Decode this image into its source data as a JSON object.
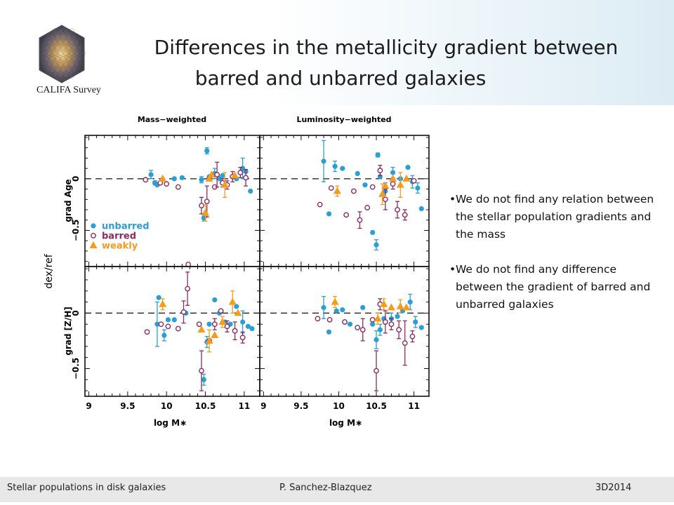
{
  "slide": {
    "title_line1": "Differences in the metallicity gradient between",
    "title_line2": "barred and unbarred galaxies",
    "logo_text": "CALIFA Survey",
    "bullets": [
      "We do not find any relation between the stellar population gradients and the mass",
      "We do not find any difference between the gradient of barred and unbarred galaxies"
    ],
    "footer": {
      "left": "Stellar populations in disk galaxies",
      "center": "P. Sanchez-Blazquez",
      "right": "3D2014"
    }
  },
  "chart_data": {
    "type": "scatter",
    "shared_ylabel": "dex/ref",
    "column_titles": [
      "Mass−weighted",
      "Luminosity−weighted"
    ],
    "row_ylabels": [
      "grad Age",
      "grad [Z/H]"
    ],
    "xlabel": "log M∗",
    "xlim": [
      8.95,
      11.2
    ],
    "xticks": [
      "9",
      "9.5",
      "10",
      "10.5",
      "11"
    ],
    "ylim_top": [
      -0.85,
      0.42
    ],
    "ylim_bottom": [
      -0.75,
      0.42
    ],
    "yticks_labeled": [
      "0",
      "−0.5"
    ],
    "legend": {
      "position": "bottom-left of top-left panel",
      "entries": [
        "unbarred",
        "barred",
        "weakly"
      ]
    },
    "colors": {
      "unbarred": "#2a9fd6",
      "barred": "#8b2c5e",
      "weakly": "#f39c1e"
    },
    "panels": [
      {
        "name": "mass-weighted-age",
        "unbarred": [
          [
            9.8,
            0.04,
            0.04
          ],
          [
            9.85,
            -0.04,
            0.02
          ],
          [
            9.88,
            -0.06,
            0
          ],
          [
            10.1,
            0,
            0
          ],
          [
            10.2,
            0.01,
            0
          ],
          [
            10.45,
            -0.01,
            0.03
          ],
          [
            10.48,
            -0.38,
            0.03
          ],
          [
            10.52,
            0.27,
            0.03
          ],
          [
            10.55,
            0.02,
            0
          ],
          [
            10.62,
            0.05,
            0.05
          ],
          [
            10.68,
            0,
            0
          ],
          [
            10.72,
            0.03,
            0
          ],
          [
            10.78,
            -0.06,
            0
          ],
          [
            10.9,
            0,
            0
          ],
          [
            10.98,
            0.1,
            0.1
          ],
          [
            11.02,
            0.07,
            0
          ],
          [
            11.08,
            -0.12,
            0
          ]
        ],
        "barred": [
          [
            9.73,
            -0.01,
            0
          ],
          [
            9.92,
            -0.04,
            0
          ],
          [
            10,
            -0.05,
            0
          ],
          [
            10.15,
            -0.08,
            0
          ],
          [
            10.28,
            -0.83,
            0
          ],
          [
            10.45,
            -0.26,
            0.08
          ],
          [
            10.52,
            -0.22,
            0.15
          ],
          [
            10.55,
            0,
            0
          ],
          [
            10.62,
            -0.08,
            0
          ],
          [
            10.65,
            0.04,
            0.12
          ],
          [
            10.72,
            -0.04,
            0.04
          ],
          [
            10.78,
            -0.06,
            0.04
          ],
          [
            10.85,
            0.02,
            0.05
          ],
          [
            10.95,
            0.06,
            0.05
          ],
          [
            11.02,
            0.01,
            0.08
          ]
        ],
        "weakly": [
          [
            9.95,
            0,
            0
          ],
          [
            10.5,
            -0.33,
            0.08
          ],
          [
            10.55,
            0,
            0
          ],
          [
            10.58,
            0.04,
            0
          ],
          [
            10.75,
            -0.06,
            0.12
          ],
          [
            10.88,
            0.03,
            0
          ]
        ]
      },
      {
        "name": "luminosity-weighted-age",
        "unbarred": [
          [
            9.8,
            0.17,
            0.2
          ],
          [
            9.87,
            -0.34,
            0
          ],
          [
            9.95,
            0.12,
            0.05
          ],
          [
            10.05,
            0.1,
            0
          ],
          [
            10.25,
            0.05,
            0
          ],
          [
            10.35,
            -0.06,
            0
          ],
          [
            10.45,
            -0.52,
            0
          ],
          [
            10.5,
            -0.64,
            0.05
          ],
          [
            10.52,
            0.23,
            0.02
          ],
          [
            10.55,
            0.02,
            0
          ],
          [
            10.62,
            -0.12,
            0.08
          ],
          [
            10.72,
            0.06,
            0.05
          ],
          [
            10.82,
            0,
            0
          ],
          [
            10.92,
            0.11,
            0
          ],
          [
            10.98,
            -0.03,
            0.06
          ],
          [
            11.05,
            -0.09,
            0.05
          ],
          [
            11.1,
            -0.29,
            0
          ]
        ],
        "barred": [
          [
            9.75,
            -0.25,
            0
          ],
          [
            9.9,
            -0.09,
            0
          ],
          [
            10.1,
            -0.35,
            0
          ],
          [
            10.2,
            -0.12,
            0
          ],
          [
            10.28,
            -0.4,
            0.08
          ],
          [
            10.38,
            -0.28,
            0
          ],
          [
            10.45,
            -0.08,
            0
          ],
          [
            10.55,
            0.08,
            0.05
          ],
          [
            10.62,
            -0.2,
            0.1
          ],
          [
            10.72,
            -0.05,
            0.05
          ],
          [
            10.78,
            -0.3,
            0.08
          ],
          [
            10.88,
            -0.35,
            0.05
          ],
          [
            11,
            -0.02,
            0
          ]
        ],
        "weakly": [
          [
            9.98,
            -0.12,
            0.05
          ],
          [
            10.58,
            -0.15,
            0.1
          ],
          [
            10.62,
            -0.07,
            0
          ],
          [
            10.72,
            0,
            0
          ],
          [
            10.82,
            -0.06,
            0.12
          ],
          [
            10.9,
            0,
            0
          ]
        ]
      },
      {
        "name": "mass-weighted-metallicity",
        "unbarred": [
          [
            9.88,
            -0.1,
            0.2
          ],
          [
            9.9,
            0.14,
            0
          ],
          [
            9.97,
            -0.2,
            0.05
          ],
          [
            10.02,
            -0.06,
            0
          ],
          [
            10.1,
            -0.06,
            0
          ],
          [
            10.25,
            0,
            0
          ],
          [
            10.48,
            -0.6,
            0.05
          ],
          [
            10.52,
            -0.26,
            0.05
          ],
          [
            10.55,
            -0.1,
            0
          ],
          [
            10.62,
            0.12,
            0
          ],
          [
            10.68,
            0,
            0
          ],
          [
            10.75,
            -0.08,
            0
          ],
          [
            10.82,
            -0.1,
            0
          ],
          [
            10.9,
            0.06,
            0
          ],
          [
            10.98,
            -0.08,
            0.1
          ],
          [
            11.05,
            -0.12,
            0
          ],
          [
            11.1,
            -0.14,
            0
          ]
        ],
        "barred": [
          [
            9.75,
            -0.17,
            0
          ],
          [
            9.93,
            -0.1,
            0
          ],
          [
            10.02,
            -0.12,
            0
          ],
          [
            10.15,
            -0.14,
            0
          ],
          [
            10.22,
            0.01,
            0.1
          ],
          [
            10.27,
            0.22,
            0.15
          ],
          [
            10.42,
            -0.1,
            0
          ],
          [
            10.45,
            -0.52,
            0.18
          ],
          [
            10.55,
            -0.25,
            0
          ],
          [
            10.62,
            -0.1,
            0.05
          ],
          [
            10.7,
            0.02,
            0
          ],
          [
            10.78,
            -0.12,
            0.05
          ],
          [
            10.88,
            -0.16,
            0.08
          ],
          [
            10.98,
            -0.22,
            0.05
          ]
        ],
        "weakly": [
          [
            9.95,
            0.08,
            0.05
          ],
          [
            10.45,
            -0.15,
            0
          ],
          [
            10.55,
            -0.25,
            0.1
          ],
          [
            10.62,
            -0.2,
            0
          ],
          [
            10.72,
            -0.08,
            0.05
          ],
          [
            10.85,
            0.1,
            0.1
          ],
          [
            10.92,
            0,
            0
          ]
        ]
      },
      {
        "name": "luminosity-weighted-metallicity",
        "unbarred": [
          [
            9.8,
            0.05,
            0.1
          ],
          [
            9.87,
            -0.17,
            0
          ],
          [
            9.97,
            0.02,
            0
          ],
          [
            10.05,
            0.03,
            0
          ],
          [
            10.15,
            -0.1,
            0
          ],
          [
            10.32,
            0.05,
            0
          ],
          [
            10.45,
            -0.1,
            0
          ],
          [
            10.5,
            -0.24,
            0.08
          ],
          [
            10.55,
            -0.15,
            0.05
          ],
          [
            10.6,
            -0.05,
            0
          ],
          [
            10.7,
            -0.05,
            0.05
          ],
          [
            10.78,
            -0.03,
            0
          ],
          [
            10.85,
            0.02,
            0
          ],
          [
            10.95,
            0.1,
            0.07
          ],
          [
            11.02,
            -0.08,
            0.05
          ],
          [
            11.1,
            -0.13,
            0
          ]
        ],
        "barred": [
          [
            9.72,
            -0.05,
            0
          ],
          [
            9.88,
            -0.06,
            0
          ],
          [
            10.08,
            -0.08,
            0
          ],
          [
            10.25,
            -0.13,
            0
          ],
          [
            10.32,
            -0.15,
            0.1
          ],
          [
            10.45,
            -0.06,
            0
          ],
          [
            10.5,
            -0.52,
            0.18
          ],
          [
            10.55,
            0.08,
            0.05
          ],
          [
            10.62,
            -0.08,
            0.1
          ],
          [
            10.7,
            -0.1,
            0.05
          ],
          [
            10.8,
            -0.15,
            0.08
          ],
          [
            10.88,
            -0.27,
            0.2
          ],
          [
            10.98,
            -0.21,
            0.05
          ]
        ],
        "weakly": [
          [
            9.95,
            0.1,
            0.05
          ],
          [
            10.52,
            -0.05,
            0.05
          ],
          [
            10.6,
            0.08,
            0.05
          ],
          [
            10.7,
            0.05,
            0
          ],
          [
            10.82,
            0.06,
            0.06
          ],
          [
            10.9,
            0.05,
            0
          ]
        ]
      }
    ]
  }
}
